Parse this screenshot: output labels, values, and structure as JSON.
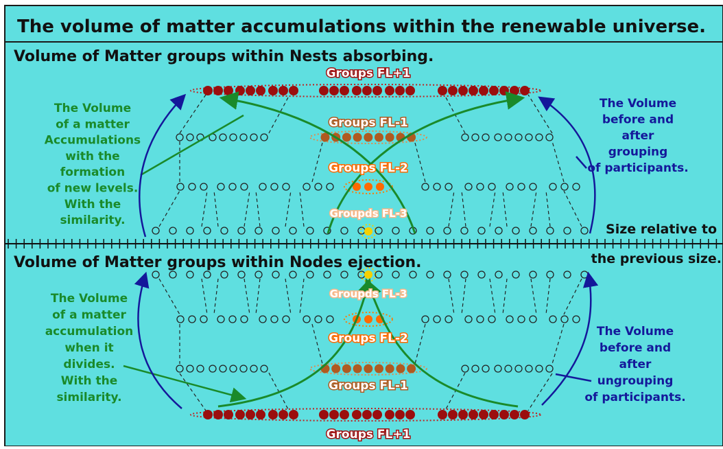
{
  "colors": {
    "background": "#5fdfe0",
    "border": "#1a1a1a",
    "title_text": "#111111",
    "green": "#1a8a2a",
    "navy": "#14189a",
    "dark_red": "#a01010",
    "brown_orange": "#b05a20",
    "orange": "#ff6a00",
    "yellow": "#f5d000",
    "label_fl3": "#f7b88a"
  },
  "title": "The volume of matter accumulations within the renewable universe.",
  "top": {
    "heading": "Volume of Matter groups within Nests absorbing.",
    "left_note": [
      "The Volume",
      "of a matter",
      "Accumulations",
      "with the",
      "formation",
      "of new levels.",
      "With the",
      "similarity."
    ],
    "right_note": [
      "The Volume",
      "before and",
      "after",
      "grouping",
      "of participants."
    ],
    "groups": {
      "fl_plus1": "Groups FL+1",
      "fl_minus1": "Groups FL-1",
      "fl_minus2": "Groups FL-2",
      "fl_minus3": "Groupds FL-3"
    }
  },
  "axis": {
    "label_line1": "Size relative to",
    "label_line2": "the previous size."
  },
  "bottom": {
    "heading": "Volume of Matter groups within Nodes ejection.",
    "left_note": [
      "The Volume",
      "of a matter",
      "accumulation",
      "when it",
      "divides.",
      "With the",
      "similarity."
    ],
    "right_note": [
      "The Volume",
      "before and",
      "after",
      "ungrouping",
      "of participants."
    ],
    "groups": {
      "fl_minus3": "Groupds FL-3",
      "fl_minus2": "Groups FL-2",
      "fl_minus1": "Groups FL-1",
      "fl_plus1": "Groups FL+1"
    }
  }
}
